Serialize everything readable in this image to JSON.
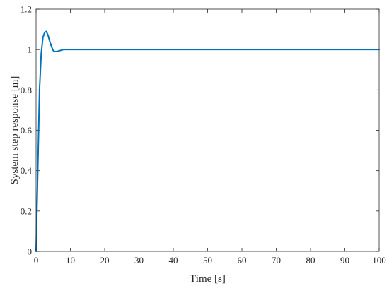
{
  "chart_data": {
    "type": "line",
    "title": "",
    "xlabel": "Time [s]",
    "ylabel": "System step response [m]",
    "xlim": [
      0,
      100
    ],
    "ylim": [
      0,
      1.2
    ],
    "xticks": [
      0,
      10,
      20,
      30,
      40,
      50,
      60,
      70,
      80,
      90,
      100
    ],
    "yticks": [
      0,
      0.2,
      0.4,
      0.6,
      0.8,
      1,
      1.2
    ],
    "grid": false,
    "series": [
      {
        "color": "#0072BD",
        "x": [
          0,
          0.5,
          1,
          1.5,
          2,
          2.5,
          3,
          3.5,
          4,
          4.5,
          5,
          5.5,
          6,
          7,
          8,
          9,
          10,
          12,
          15,
          20,
          30,
          40,
          50,
          60,
          70,
          80,
          90,
          100
        ],
        "y": [
          0,
          0.4,
          0.8,
          0.98,
          1.06,
          1.085,
          1.09,
          1.07,
          1.04,
          1.015,
          0.995,
          0.99,
          0.99,
          0.995,
          1.0,
          1.0,
          1.0,
          1.0,
          1.0,
          1.0,
          1.0,
          1.0,
          1.0,
          1.0,
          1.0,
          1.0,
          1.0,
          1.0
        ]
      }
    ]
  }
}
